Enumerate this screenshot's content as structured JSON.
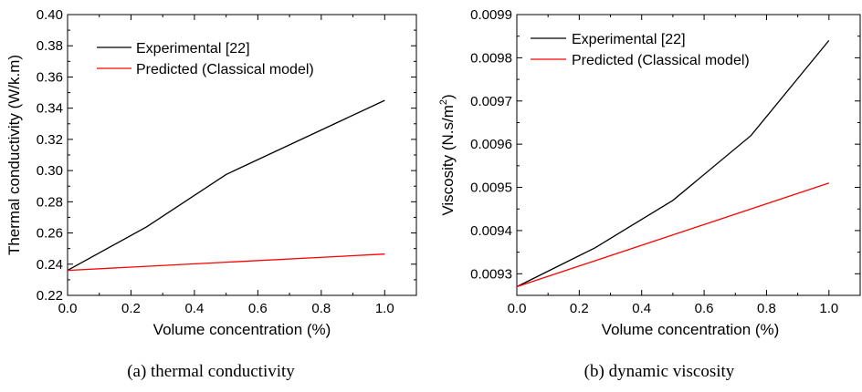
{
  "chart_data": [
    {
      "type": "line",
      "xlabel": "Volume concentration (%)",
      "ylabel": "Thermal conductivity (W/k.m)",
      "caption": "(a) thermal conductivity",
      "xlim": [
        0,
        1.1
      ],
      "ylim": [
        0.22,
        0.4
      ],
      "xticks": [
        "0.0",
        "0.2",
        "0.4",
        "0.6",
        "0.8",
        "1.0"
      ],
      "yticks": [
        "0.22",
        "0.24",
        "0.26",
        "0.28",
        "0.30",
        "0.32",
        "0.34",
        "0.36",
        "0.38",
        "0.40"
      ],
      "legend_position": "top-left",
      "series": [
        {
          "name": "Experimental [22]",
          "color": "#000000",
          "x": [
            0,
            0.25,
            0.5,
            1.0
          ],
          "y": [
            0.236,
            0.264,
            0.2975,
            0.345
          ]
        },
        {
          "name": "Predicted (Classical model)",
          "color": "#ff0000",
          "x": [
            0,
            1.0
          ],
          "y": [
            0.236,
            0.2465
          ]
        }
      ]
    },
    {
      "type": "line",
      "xlabel": "Volume concentration (%)",
      "ylabel": "Viscosity (N.s/m",
      "ylabel_sup": "2",
      "ylabel_end": ")",
      "caption": "(b) dynamic viscosity",
      "xlim": [
        0,
        1.1
      ],
      "ylim": [
        0.00925,
        0.0099
      ],
      "xticks": [
        "0.0",
        "0.2",
        "0.4",
        "0.6",
        "0.8",
        "1.0"
      ],
      "yticks": [
        "0.0093",
        "0.0094",
        "0.0095",
        "0.0096",
        "0.0097",
        "0.0098",
        "0.0099"
      ],
      "legend_position": "top-left",
      "series": [
        {
          "name": "Experimental [22]",
          "color": "#000000",
          "x": [
            0,
            0.25,
            0.5,
            0.75,
            1.0
          ],
          "y": [
            0.00927,
            0.00936,
            0.00947,
            0.00962,
            0.00984
          ]
        },
        {
          "name": "Predicted (Classical model)",
          "color": "#ff0000",
          "x": [
            0,
            1.0
          ],
          "y": [
            0.00927,
            0.00951
          ]
        }
      ]
    }
  ]
}
